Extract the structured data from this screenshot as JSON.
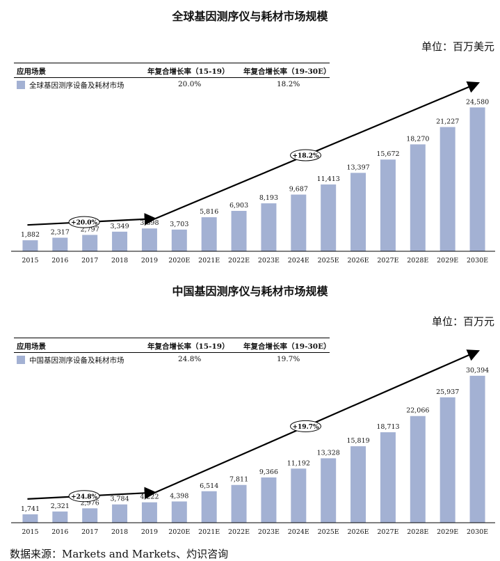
{
  "source": "数据来源：Markets and Markets、灼识咨询",
  "colors": {
    "bar": "#a3b1d3",
    "axis": "#000000"
  },
  "charts": [
    {
      "title": "全球基因测序仪与耗材市场规模",
      "unit": "单位：百万美元",
      "legend_header": {
        "col1": "应用场景",
        "col2": "年复合增长率（15-19）",
        "col3": "年复合增长率（19-30E）"
      },
      "legend_row": {
        "name": "全球基因测序设备及耗材市场",
        "cagr1": "20.0%",
        "cagr2": "18.2%"
      },
      "annotations": {
        "a1": "+20.0%",
        "a2": "+18.2%"
      }
    },
    {
      "title": "中国基因测序仪与耗材市场规模",
      "unit": "单位：百万元",
      "legend_header": {
        "col1": "应用场景",
        "col2": "年复合增长率（15-19）",
        "col3": "年复合增长率（19-30E）"
      },
      "legend_row": {
        "name": "中国基因测序设备及耗材市场",
        "cagr1": "24.8%",
        "cagr2": "19.7%"
      },
      "annotations": {
        "a1": "+24.8%",
        "a2": "+19.7%"
      }
    }
  ],
  "chart_data": [
    {
      "type": "bar",
      "title": "全球基因测序仪与耗材市场规模",
      "categories": [
        "2015",
        "2016",
        "2017",
        "2018",
        "2019",
        "2020E",
        "2021E",
        "2022E",
        "2023E",
        "2024E",
        "2025E",
        "2026E",
        "2027E",
        "2028E",
        "2029E",
        "2030E"
      ],
      "series": [
        {
          "name": "全球基因测序设备及耗材市场",
          "values": [
            1882,
            2317,
            2797,
            3349,
            3898,
            3703,
            5816,
            6903,
            8193,
            9687,
            11413,
            13397,
            15672,
            18270,
            21227,
            24580
          ]
        }
      ],
      "value_labels": [
        "1,882",
        "2,317",
        "2,797",
        "3,349",
        "3,898",
        "3,703",
        "5,816",
        "6,903",
        "8,193",
        "9,687",
        "11,413",
        "13,397",
        "15,672",
        "18,270",
        "21,227",
        "24,580"
      ],
      "ylim": [
        0,
        27000
      ],
      "grid": false
    },
    {
      "type": "bar",
      "title": "中国基因测序仪与耗材市场规模",
      "categories": [
        "2015",
        "2016",
        "2017",
        "2018",
        "2019",
        "2020E",
        "2021E",
        "2022E",
        "2023E",
        "2024E",
        "2025E",
        "2026E",
        "2027E",
        "2028E",
        "2029E",
        "2030E"
      ],
      "series": [
        {
          "name": "中国基因测序设备及耗材市场",
          "values": [
            1741,
            2321,
            2976,
            3784,
            4222,
            4398,
            6514,
            7811,
            9366,
            11192,
            13328,
            15819,
            18713,
            22066,
            25937,
            30394
          ]
        }
      ],
      "value_labels": [
        "1,741",
        "2,321",
        "2,976",
        "3,784",
        "4,222",
        "4,398",
        "6,514",
        "7,811",
        "9,366",
        "11,192",
        "13,328",
        "15,819",
        "18,713",
        "22,066",
        "25,937",
        "30,394"
      ],
      "ylim": [
        0,
        33400
      ],
      "grid": false
    }
  ]
}
